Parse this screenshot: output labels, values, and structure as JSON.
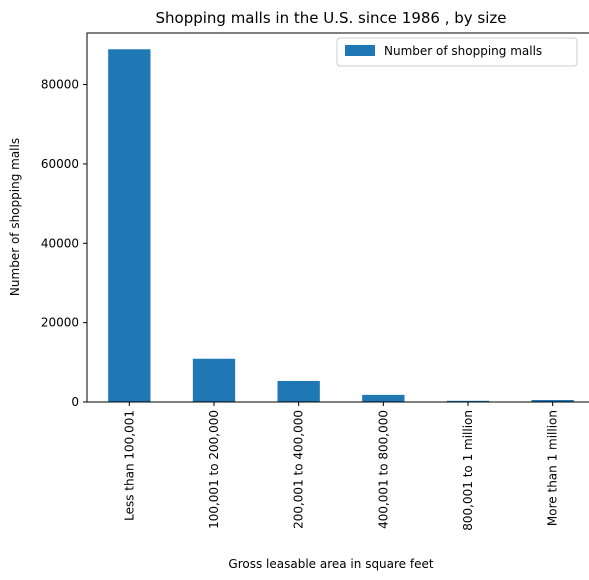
{
  "chart_data": {
    "type": "bar",
    "title": "Shopping malls in the U.S. since 1986 , by size",
    "xlabel": "Gross leasable area in square feet",
    "ylabel": "Number of shopping malls",
    "categories": [
      "Less than 100,001",
      "100,001 to 200,000",
      "200,001 to 400,000",
      "400,001 to 800,000",
      "800,001 to 1 million",
      "More than 1 million"
    ],
    "series": [
      {
        "name": "Number of shopping malls",
        "values": [
          88900,
          10900,
          5300,
          1800,
          300,
          500
        ]
      }
    ],
    "ylim": [
      0,
      93000
    ],
    "yticks": [
      0,
      20000,
      40000,
      60000,
      80000
    ],
    "grid": false,
    "legend_position": "top-right",
    "colors": {
      "bar": "#1f77b4"
    }
  }
}
